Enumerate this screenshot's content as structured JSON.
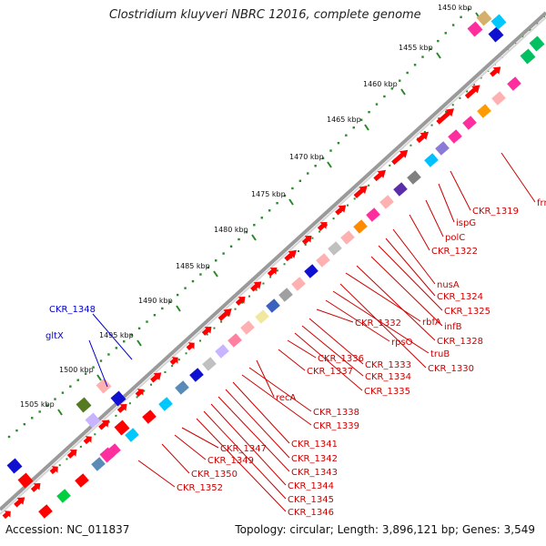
{
  "title": "Clostridium kluyveri NBRC 12016, complete genome",
  "footer": {
    "accession": "Accession: NC_011837",
    "summary": "Topology: circular; Length: 3,896,121 bp; Genes: 3,549"
  },
  "colors": {
    "forward_gene": "#ff0000",
    "tick": "#2a8a2a",
    "backbone": "#808080",
    "label_red": "#cc0000",
    "label_blue": "#0000cc"
  },
  "kbp_labels": [
    "1450 kbp",
    "1455 kbp",
    "1460 kbp",
    "1465 kbp",
    "1470 kbp",
    "1475 kbp",
    "1480 kbp",
    "1485 kbp",
    "1490 kbp",
    "1495 kbp",
    "1500 kbp",
    "1505 kbp"
  ],
  "gene_labels": [
    "frr",
    "CKR_1319",
    "ispG",
    "polC",
    "CKR_1322",
    "nusA",
    "CKR_1324",
    "CKR_1325",
    "infB",
    "CKR_1328",
    "rbfA",
    "CKR_1330",
    "truB",
    "rpsO",
    "CKR_1332",
    "CKR_1333",
    "CKR_1334",
    "CKR_1335",
    "CKR_1336",
    "CKR_1337",
    "recA",
    "CKR_1338",
    "CKR_1339",
    "CKR_1341",
    "CKR_1342",
    "CKR_1343",
    "CKR_1344",
    "CKR_1345",
    "CKR_1346",
    "CKR_1347",
    "CKR_1349",
    "CKR_1350",
    "CKR_1352"
  ],
  "blue_labels": [
    "CKR_1348",
    "gltX"
  ]
}
